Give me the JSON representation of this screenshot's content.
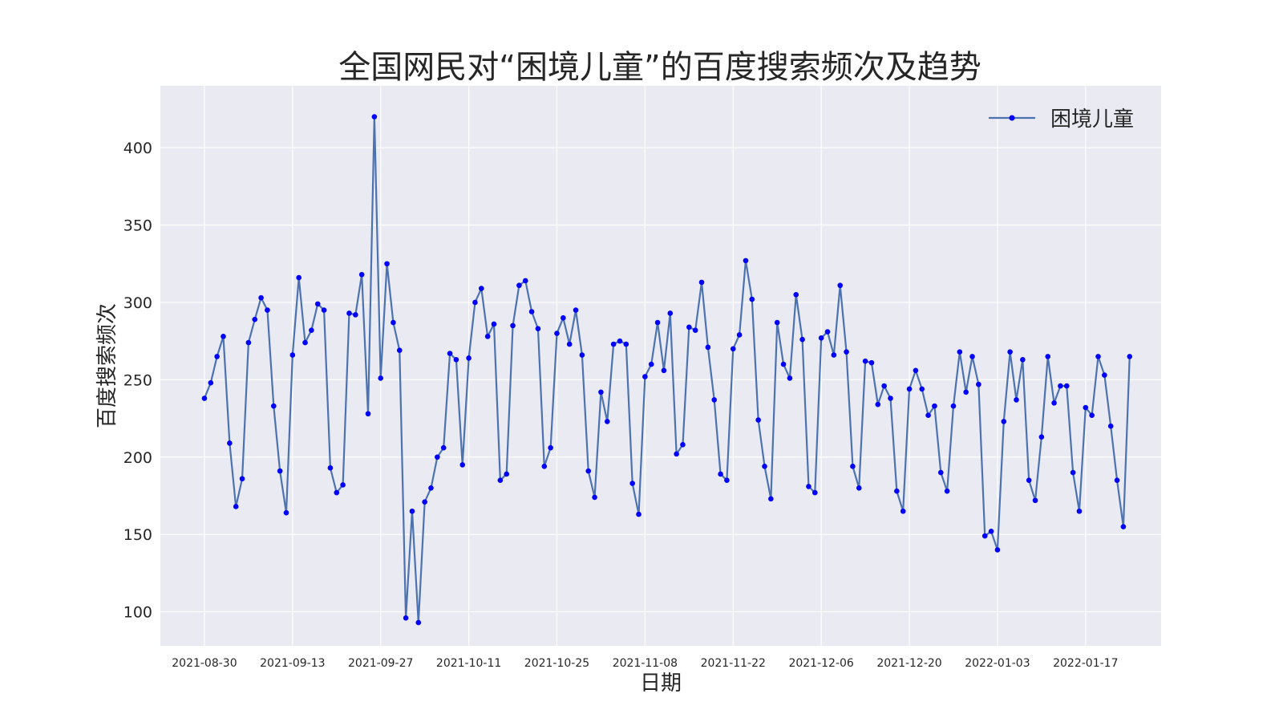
{
  "chart_data": {
    "type": "line",
    "title": "全国网民对“困境儿童”的百度搜索频次及趋势",
    "xlabel": "日期",
    "ylabel": "百度搜索频次",
    "xrange": [
      "2021-08-23",
      "2022-01-29"
    ],
    "ylim": [
      78,
      440
    ],
    "yticks": [
      100,
      150,
      200,
      250,
      300,
      350,
      400
    ],
    "xticks": [
      "2021-08-30",
      "2021-09-13",
      "2021-09-27",
      "2021-10-11",
      "2021-10-25",
      "2021-11-08",
      "2021-11-22",
      "2021-12-06",
      "2021-12-20",
      "2022-01-03",
      "2022-01-17"
    ],
    "grid": true,
    "legend_position": "top-right",
    "start_date": "2021-08-30",
    "colors": {
      "line": "#4c72b0",
      "marker": "#0000ff",
      "plot_background": "#eaeaf2",
      "grid": "#ffffff"
    },
    "series": [
      {
        "name": "困境儿童",
        "values": [
          238,
          248,
          265,
          278,
          209,
          168,
          186,
          274,
          289,
          303,
          295,
          233,
          191,
          164,
          266,
          316,
          274,
          282,
          299,
          295,
          193,
          177,
          182,
          293,
          292,
          318,
          228,
          420,
          251,
          325,
          287,
          269,
          96,
          165,
          93,
          171,
          180,
          200,
          206,
          267,
          263,
          195,
          264,
          300,
          309,
          278,
          286,
          185,
          189,
          285,
          311,
          314,
          294,
          283,
          194,
          206,
          280,
          290,
          273,
          295,
          266,
          191,
          174,
          242,
          223,
          273,
          275,
          273,
          183,
          163,
          252,
          260,
          287,
          256,
          293,
          202,
          208,
          284,
          282,
          313,
          271,
          237,
          189,
          185,
          270,
          279,
          327,
          302,
          224,
          194,
          173,
          287,
          260,
          251,
          305,
          276,
          181,
          177,
          277,
          281,
          266,
          311,
          268,
          194,
          180,
          262,
          261,
          234,
          246,
          238,
          178,
          165,
          244,
          256,
          244,
          227,
          233,
          190,
          178,
          233,
          268,
          242,
          265,
          247,
          149,
          152,
          140,
          223,
          268,
          237,
          263,
          185,
          172,
          213,
          265,
          235,
          246,
          246,
          190,
          165,
          232,
          227,
          265,
          253,
          220,
          185,
          155,
          265
        ]
      }
    ]
  }
}
